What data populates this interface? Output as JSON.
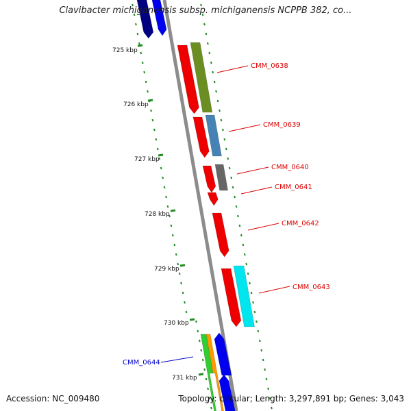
{
  "title": "Clavibacter michiganensis subsp. michiganensis NCPPB 382, co...",
  "accession": "Accession: NC_009480",
  "topology": "Topology: circular; Length: 3,297,891 bp; Genes: 3,043",
  "colors": {
    "backbone": "#8c8c8c",
    "tick": "#228b22",
    "label_red": "#dd0000",
    "label_blue": "#0000cc"
  },
  "scale_labels": [
    "725 kbp",
    "726 kbp",
    "727 kbp",
    "728 kbp",
    "729 kbp",
    "730 kbp",
    "731 kbp"
  ],
  "genes": [
    {
      "label": "CMM_0638",
      "label_color": "#dd0000",
      "cds_color": "#ee0000",
      "feature_color": "#6b8e23"
    },
    {
      "label": "CMM_0639",
      "label_color": "#dd0000",
      "cds_color": "#ee0000",
      "feature_color": "#4682b4"
    },
    {
      "label": "CMM_0640",
      "label_color": "#dd0000",
      "cds_color": "#ee0000",
      "feature_color": "#666666"
    },
    {
      "label": "CMM_0641",
      "label_color": "#dd0000",
      "cds_color": "#ee0000"
    },
    {
      "label": "CMM_0642",
      "label_color": "#dd0000",
      "cds_color": "#ee0000"
    },
    {
      "label": "CMM_0643",
      "label_color": "#dd0000",
      "cds_color": "#ee0000",
      "feature_color": "#00e5ee"
    },
    {
      "label": "CMM_0644",
      "label_color": "#0000cc",
      "cds_color": "#0000ee",
      "feature_color": "#32cd32"
    }
  ]
}
